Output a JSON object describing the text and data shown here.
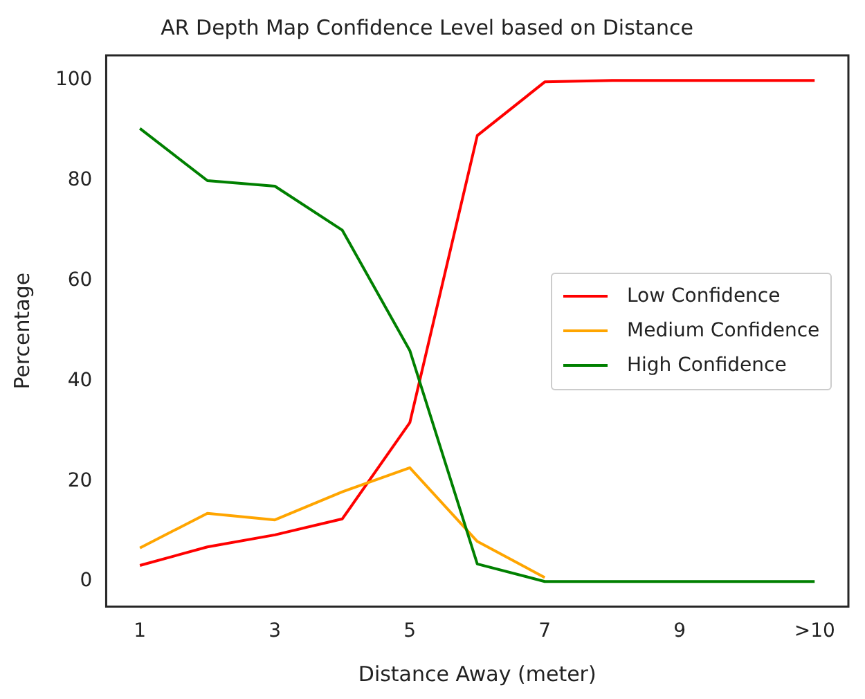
{
  "chart_data": {
    "type": "line",
    "title": "AR Depth Map Confidence Level based on Distance",
    "xlabel": "Distance Away (meter)",
    "ylabel": "Percentage",
    "categories": [
      "1",
      null,
      "3",
      null,
      "5",
      null,
      "7",
      null,
      "9",
      null,
      ">10"
    ],
    "series": [
      {
        "name": "Low Confidence",
        "color": "#ff0000",
        "values": [
          3.2,
          6.9,
          9.3,
          12.5,
          31.7,
          89,
          99.7,
          100,
          100,
          100,
          100
        ]
      },
      {
        "name": "Medium Confidence",
        "color": "#ffa500",
        "values": [
          6.7,
          13.6,
          12.3,
          17.9,
          22.7,
          8,
          0.8,
          null,
          null,
          null,
          null
        ]
      },
      {
        "name": "High Confidence",
        "color": "#008000",
        "values": [
          90.4,
          80,
          78.9,
          70.1,
          46.1,
          3.5,
          0,
          0,
          0,
          0,
          0
        ]
      }
    ],
    "ylim": [
      -5,
      105
    ],
    "yticks": [
      0,
      20,
      40,
      60,
      80,
      100
    ],
    "grid": false,
    "legend": "center right",
    "marker": "none",
    "line_style": "solid"
  }
}
